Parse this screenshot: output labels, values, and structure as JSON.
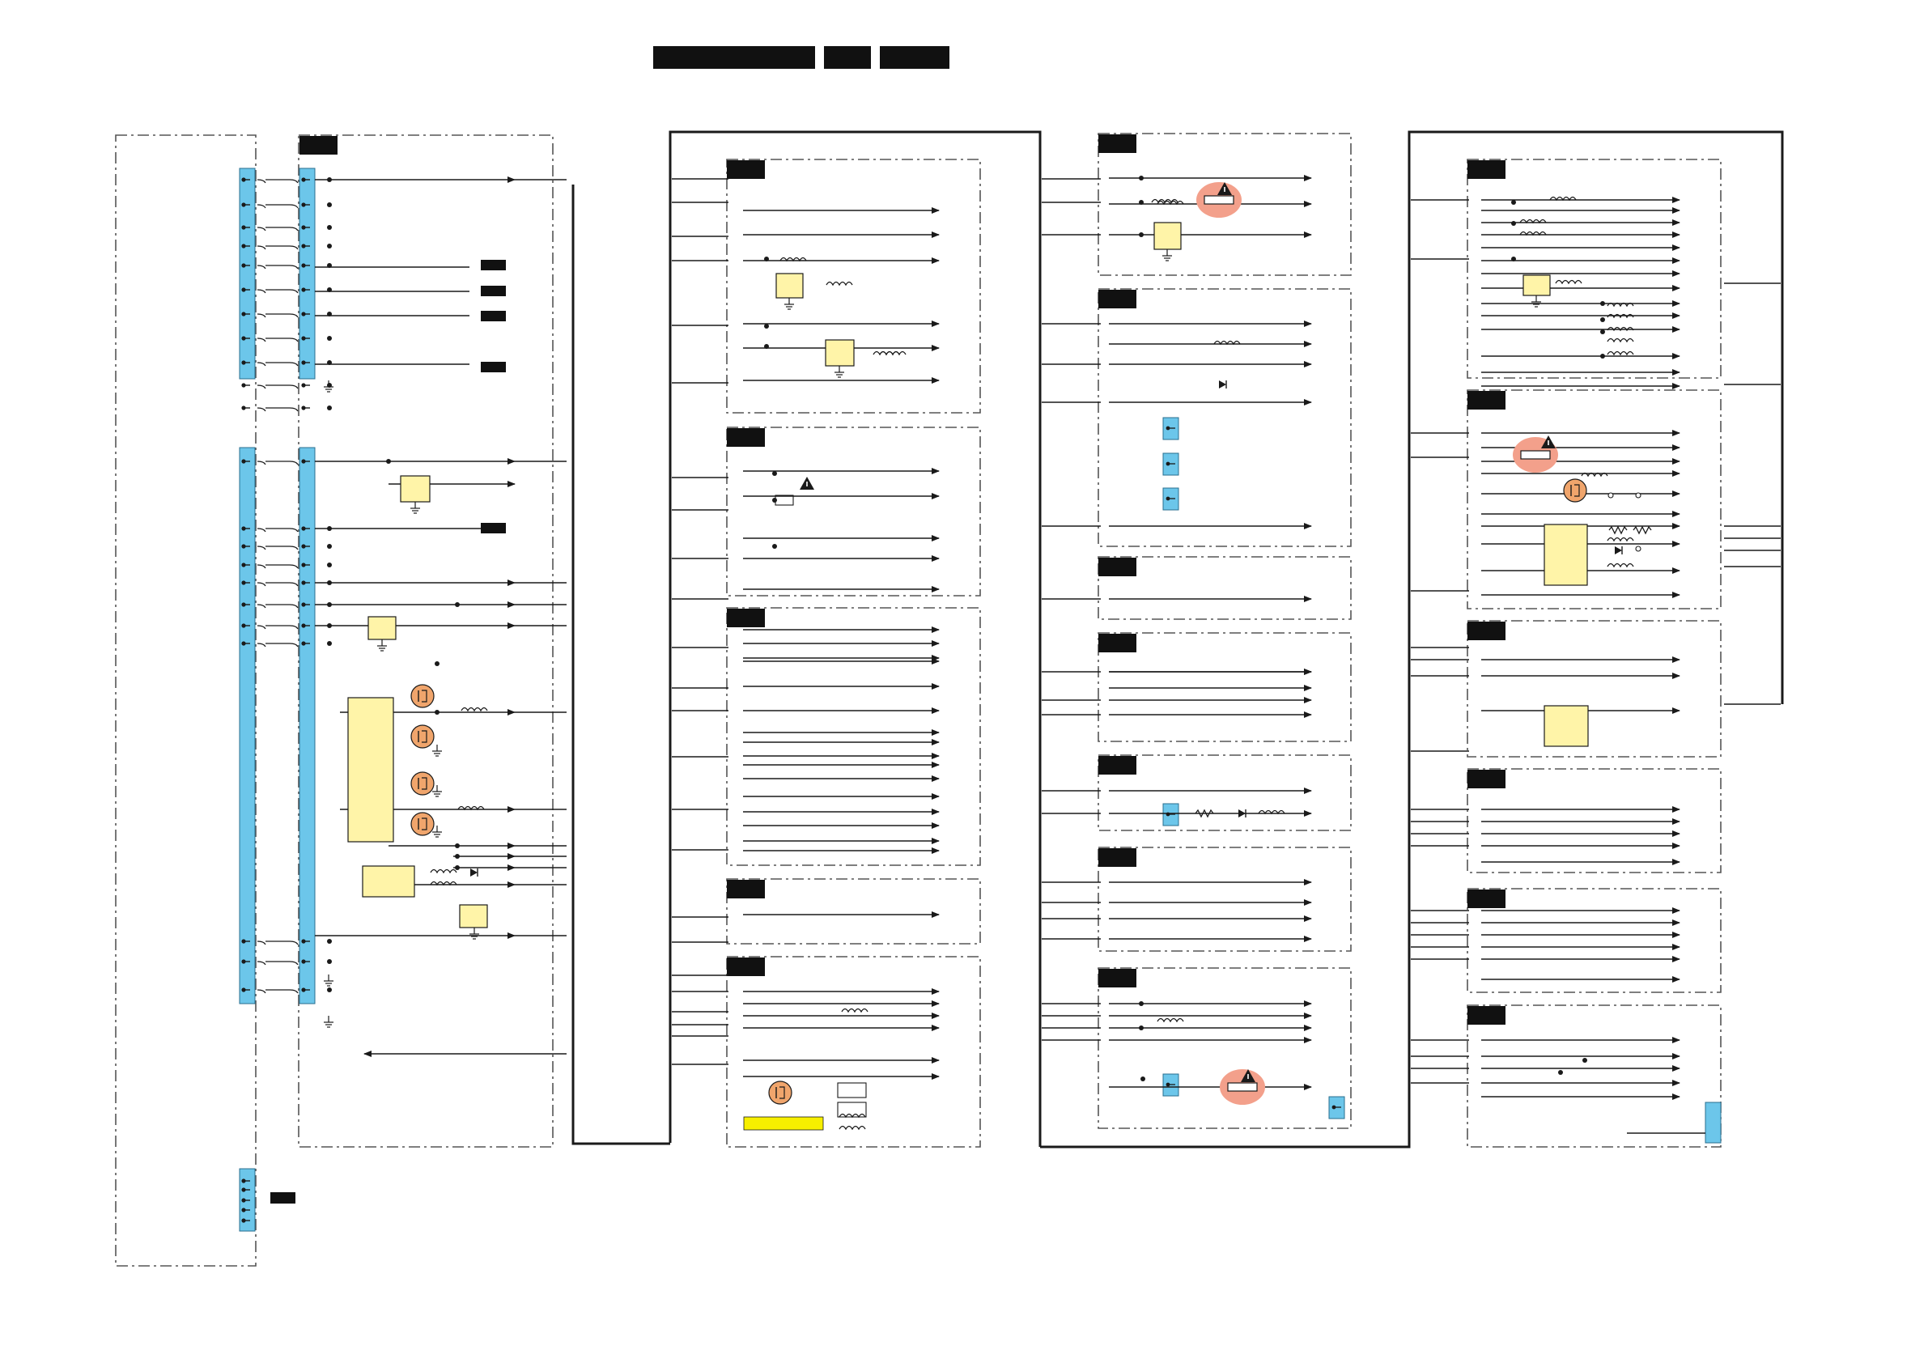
{
  "diagram": {
    "background_color": "#ffffff",
    "line_color": "#1a1a1a",
    "connector_color": "#6cc6ea",
    "ic_fill_color": "#fff4a8",
    "transistor_fill_color": "#f0a56c",
    "warning_fill_color": "#f3a08b",
    "highlight_bar_color": "#f7ef00",
    "label_fill_color": "#111111",
    "icons": [
      "connector-pin-icon",
      "ground-icon",
      "inductor-icon",
      "diode-icon",
      "resistor-icon",
      "mosfet-icon",
      "fuse-icon",
      "warning-icon"
    ],
    "text_labels": []
  }
}
